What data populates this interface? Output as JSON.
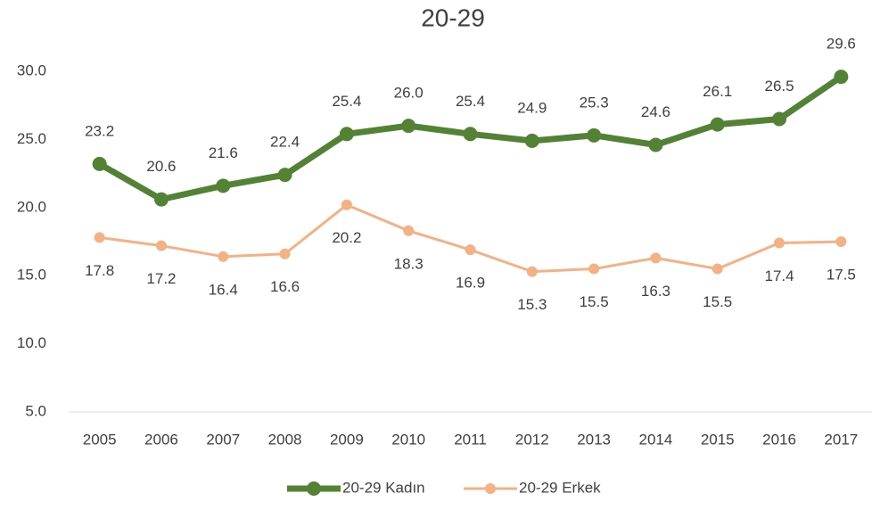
{
  "chart_data": {
    "type": "line",
    "title": "20-29",
    "categories": [
      "2005",
      "2006",
      "2007",
      "2008",
      "2009",
      "2010",
      "2011",
      "2012",
      "2013",
      "2014",
      "2015",
      "2016",
      "2017"
    ],
    "series": [
      {
        "name": "20-29 Kadın",
        "color": "#548235",
        "values": [
          23.2,
          20.6,
          21.6,
          22.4,
          25.4,
          26.0,
          25.4,
          24.9,
          25.3,
          24.6,
          26.1,
          26.5,
          29.6
        ],
        "value_labels": [
          "23.2",
          "20.6",
          "21.6",
          "22.4",
          "25.4",
          "26.0",
          "25.4",
          "24.9",
          "25.3",
          "24.6",
          "26.1",
          "26.5",
          "29.6"
        ]
      },
      {
        "name": "20-29 Erkek",
        "color": "#f4b183",
        "values": [
          17.8,
          17.2,
          16.4,
          16.6,
          20.2,
          18.3,
          16.9,
          15.3,
          15.5,
          16.3,
          15.5,
          17.4,
          17.5
        ],
        "value_labels": [
          "17.8",
          "17.2",
          "16.4",
          "16.6",
          "20.2",
          "18.3",
          "16.9",
          "15.3",
          "15.5",
          "16.3",
          "15.5",
          "17.4",
          "17.5"
        ]
      }
    ],
    "ylim": [
      5,
      30
    ],
    "yticks": [
      {
        "value": 5,
        "label": "5.0"
      },
      {
        "value": 10,
        "label": "10.0"
      },
      {
        "value": 15,
        "label": "15.0"
      },
      {
        "value": 20,
        "label": "20.0"
      },
      {
        "value": 25,
        "label": "25.0"
      },
      {
        "value": 30,
        "label": "30.0"
      }
    ],
    "legend": "bottom"
  }
}
